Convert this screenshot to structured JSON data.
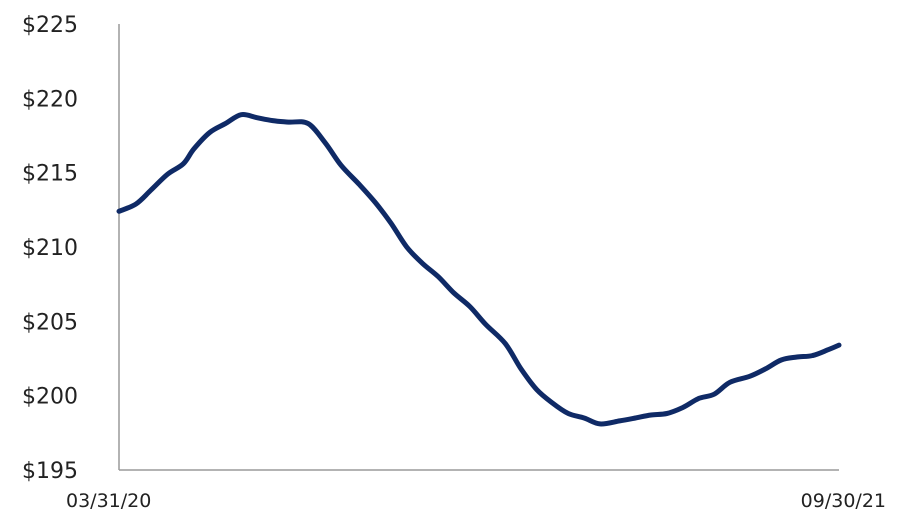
{
  "chart_data": {
    "type": "line",
    "title": "",
    "xlabel": "",
    "ylabel": "",
    "ylim": [
      195,
      225
    ],
    "yticks": [
      195,
      200,
      205,
      210,
      215,
      220,
      225
    ],
    "ytick_labels": [
      "$195",
      "$200",
      "$205",
      "$210",
      "$215",
      "$220",
      "$225"
    ],
    "x_tick_labels": [
      "03/31/20",
      "09/30/21"
    ],
    "x_start": "2020-03-31",
    "x_end": "2021-09-30",
    "grid": false,
    "legend": "none",
    "series_color": "#0f2a66",
    "series": [
      {
        "x": [
          "2020-03-31",
          "2020-04-13",
          "2020-04-24",
          "2020-05-07",
          "2020-05-19",
          "2020-05-27",
          "2020-06-08",
          "2020-06-20",
          "2020-07-02",
          "2020-07-14",
          "2020-07-26",
          "2020-08-07",
          "2020-08-22",
          "2020-09-04",
          "2020-09-16",
          "2020-09-30",
          "2020-10-12",
          "2020-10-24",
          "2020-11-05",
          "2020-11-17",
          "2020-11-29",
          "2020-12-11",
          "2020-12-23",
          "2021-01-04",
          "2021-01-19",
          "2021-01-31",
          "2021-02-12",
          "2021-02-24",
          "2021-03-08",
          "2021-03-20",
          "2021-04-01",
          "2021-04-16",
          "2021-04-28",
          "2021-05-10",
          "2021-05-22",
          "2021-06-03",
          "2021-06-15",
          "2021-06-27",
          "2021-07-09",
          "2021-07-24",
          "2021-08-05",
          "2021-08-17",
          "2021-08-29",
          "2021-09-10",
          "2021-09-22",
          "2021-09-30"
        ],
        "values": [
          212.4,
          212.9,
          213.8,
          214.9,
          215.6,
          216.6,
          217.7,
          218.3,
          218.9,
          218.7,
          218.5,
          218.4,
          218.3,
          217.0,
          215.5,
          214.2,
          213.0,
          211.6,
          210.0,
          208.9,
          208.0,
          206.9,
          206.0,
          204.8,
          203.5,
          201.8,
          200.4,
          199.5,
          198.8,
          198.5,
          198.1,
          198.3,
          198.5,
          198.7,
          198.8,
          199.2,
          199.8,
          200.1,
          200.9,
          201.3,
          201.8,
          202.4,
          202.6,
          202.7,
          203.1,
          203.4
        ]
      }
    ]
  }
}
